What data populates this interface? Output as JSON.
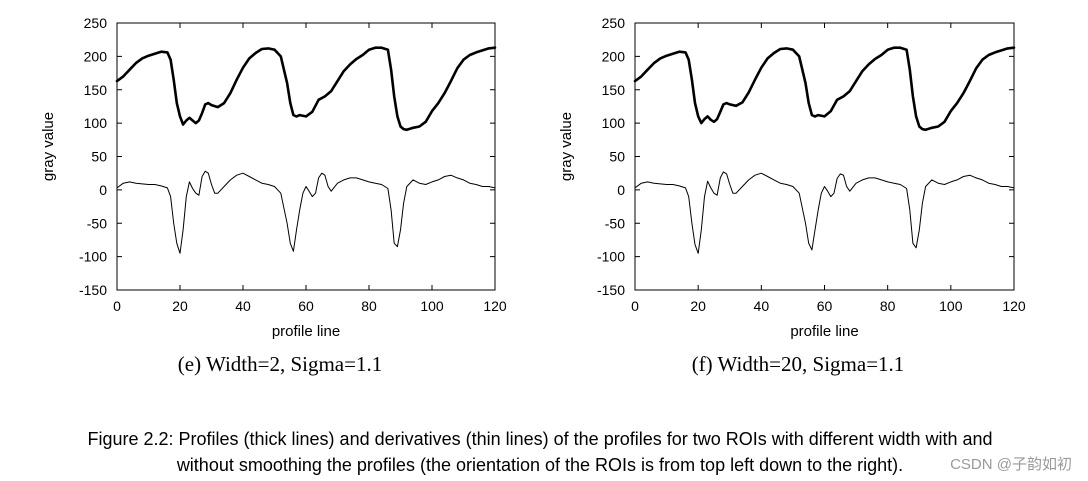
{
  "chart_data": [
    {
      "type": "line",
      "xlabel": "profile line",
      "ylabel": "gray value",
      "xlim": [
        0,
        120
      ],
      "ylim": [
        -150,
        250
      ],
      "xticks": [
        "0",
        "20",
        "40",
        "60",
        "80",
        "100",
        "120"
      ],
      "yticks": [
        "250",
        "200",
        "150",
        "100",
        "50",
        "0",
        "-50",
        "-100",
        "-150"
      ],
      "caption": "(e) Width=2, Sigma=1.1",
      "series": [
        {
          "name": "profile (thick line)",
          "x": [
            0,
            2,
            4,
            6,
            8,
            10,
            12,
            14,
            16,
            17,
            18,
            19,
            20,
            21,
            22,
            23,
            24,
            25,
            26,
            27,
            28,
            29,
            30,
            32,
            34,
            36,
            38,
            40,
            42,
            44,
            46,
            48,
            50,
            52,
            54,
            55,
            56,
            57,
            58,
            60,
            62,
            64,
            66,
            68,
            70,
            72,
            74,
            76,
            78,
            80,
            82,
            84,
            86,
            87,
            88,
            89,
            90,
            91,
            92,
            94,
            96,
            98,
            100,
            102,
            104,
            106,
            108,
            110,
            112,
            114,
            116,
            118,
            120
          ],
          "y": [
            163,
            170,
            180,
            190,
            197,
            201,
            204,
            207,
            206,
            195,
            165,
            130,
            110,
            98,
            104,
            108,
            104,
            100,
            104,
            115,
            128,
            130,
            127,
            124,
            130,
            145,
            165,
            183,
            197,
            205,
            211,
            212,
            210,
            200,
            160,
            130,
            112,
            110,
            112,
            110,
            117,
            135,
            140,
            148,
            163,
            178,
            188,
            196,
            202,
            210,
            213,
            213,
            210,
            180,
            140,
            110,
            95,
            91,
            90,
            93,
            95,
            102,
            118,
            130,
            145,
            163,
            182,
            195,
            202,
            206,
            209,
            212,
            213
          ]
        },
        {
          "name": "derivative (thin line)",
          "x": [
            0,
            2,
            4,
            6,
            8,
            10,
            12,
            14,
            16,
            17,
            18,
            19,
            20,
            21,
            22,
            23,
            24,
            25,
            26,
            27,
            28,
            29,
            30,
            31,
            32,
            34,
            36,
            38,
            40,
            42,
            44,
            46,
            48,
            50,
            52,
            54,
            55,
            56,
            57,
            58,
            59,
            60,
            61,
            62,
            63,
            64,
            65,
            66,
            67,
            68,
            70,
            72,
            74,
            76,
            78,
            80,
            82,
            84,
            86,
            87,
            88,
            89,
            90,
            91,
            92,
            94,
            96,
            98,
            100,
            102,
            104,
            106,
            108,
            110,
            112,
            114,
            116,
            118,
            120
          ],
          "y": [
            3,
            10,
            12,
            10,
            9,
            8,
            8,
            6,
            3,
            -10,
            -50,
            -80,
            -95,
            -60,
            -10,
            12,
            2,
            -5,
            -8,
            20,
            28,
            25,
            8,
            -5,
            -5,
            5,
            15,
            22,
            25,
            20,
            15,
            10,
            8,
            5,
            -5,
            -50,
            -80,
            -92,
            -60,
            -30,
            -5,
            5,
            -2,
            -10,
            -5,
            18,
            25,
            22,
            5,
            -2,
            10,
            15,
            18,
            18,
            15,
            12,
            10,
            8,
            2,
            -30,
            -80,
            -85,
            -60,
            -20,
            5,
            15,
            10,
            8,
            12,
            15,
            20,
            22,
            18,
            15,
            10,
            8,
            5,
            5,
            3
          ]
        }
      ]
    },
    {
      "type": "line",
      "xlabel": "profile line",
      "ylabel": "gray value",
      "xlim": [
        0,
        120
      ],
      "ylim": [
        -150,
        250
      ],
      "xticks": [
        "0",
        "20",
        "40",
        "60",
        "80",
        "100",
        "120"
      ],
      "yticks": [
        "250",
        "200",
        "150",
        "100",
        "50",
        "0",
        "-50",
        "-100",
        "-150"
      ],
      "caption": "(f) Width=20, Sigma=1.1",
      "series": [
        {
          "name": "profile (thick line)",
          "x": [
            0,
            2,
            4,
            6,
            8,
            10,
            12,
            14,
            16,
            17,
            18,
            19,
            20,
            21,
            22,
            23,
            24,
            25,
            26,
            27,
            28,
            29,
            30,
            32,
            34,
            36,
            38,
            40,
            42,
            44,
            46,
            48,
            50,
            52,
            54,
            55,
            56,
            57,
            58,
            60,
            62,
            64,
            66,
            68,
            70,
            72,
            74,
            76,
            78,
            80,
            82,
            84,
            86,
            87,
            88,
            89,
            90,
            91,
            92,
            94,
            96,
            98,
            100,
            102,
            104,
            106,
            108,
            110,
            112,
            114,
            116,
            118,
            120
          ],
          "y": [
            163,
            170,
            180,
            190,
            197,
            201,
            204,
            207,
            206,
            195,
            165,
            130,
            110,
            100,
            106,
            110,
            105,
            102,
            106,
            117,
            128,
            130,
            128,
            126,
            131,
            146,
            165,
            183,
            197,
            205,
            211,
            212,
            210,
            200,
            160,
            130,
            112,
            110,
            112,
            110,
            118,
            135,
            140,
            148,
            163,
            178,
            188,
            196,
            202,
            210,
            213,
            213,
            210,
            180,
            140,
            110,
            95,
            91,
            90,
            93,
            95,
            102,
            118,
            130,
            145,
            163,
            182,
            195,
            202,
            206,
            209,
            212,
            213
          ]
        },
        {
          "name": "derivative (thin line)",
          "x": [
            0,
            2,
            4,
            6,
            8,
            10,
            12,
            14,
            16,
            17,
            18,
            19,
            20,
            21,
            22,
            23,
            24,
            25,
            26,
            27,
            28,
            29,
            30,
            31,
            32,
            34,
            36,
            38,
            40,
            42,
            44,
            46,
            48,
            50,
            52,
            54,
            55,
            56,
            57,
            58,
            59,
            60,
            61,
            62,
            63,
            64,
            65,
            66,
            67,
            68,
            70,
            72,
            74,
            76,
            78,
            80,
            82,
            84,
            86,
            87,
            88,
            89,
            90,
            91,
            92,
            94,
            96,
            98,
            100,
            102,
            104,
            106,
            108,
            110,
            112,
            114,
            116,
            118,
            120
          ],
          "y": [
            3,
            10,
            12,
            10,
            9,
            8,
            8,
            6,
            3,
            -10,
            -50,
            -82,
            -95,
            -60,
            -10,
            13,
            3,
            -5,
            -8,
            18,
            27,
            24,
            8,
            -5,
            -5,
            5,
            15,
            22,
            25,
            20,
            15,
            10,
            8,
            5,
            -5,
            -50,
            -80,
            -90,
            -60,
            -30,
            -5,
            5,
            -2,
            -10,
            -5,
            17,
            24,
            22,
            5,
            -2,
            10,
            15,
            18,
            18,
            15,
            12,
            10,
            8,
            2,
            -30,
            -80,
            -87,
            -60,
            -20,
            5,
            15,
            10,
            8,
            12,
            15,
            20,
            22,
            18,
            15,
            10,
            8,
            5,
            5,
            3
          ]
        }
      ]
    }
  ],
  "figure_caption": {
    "line1": "Figure 2.2: Profiles (thick lines) and derivatives (thin lines) of the profiles for two ROIs with different width with and",
    "line2": "without smoothing the profiles (the orientation of the ROIs is from top left down to the right)."
  },
  "watermark": "CSDN @子韵如初"
}
